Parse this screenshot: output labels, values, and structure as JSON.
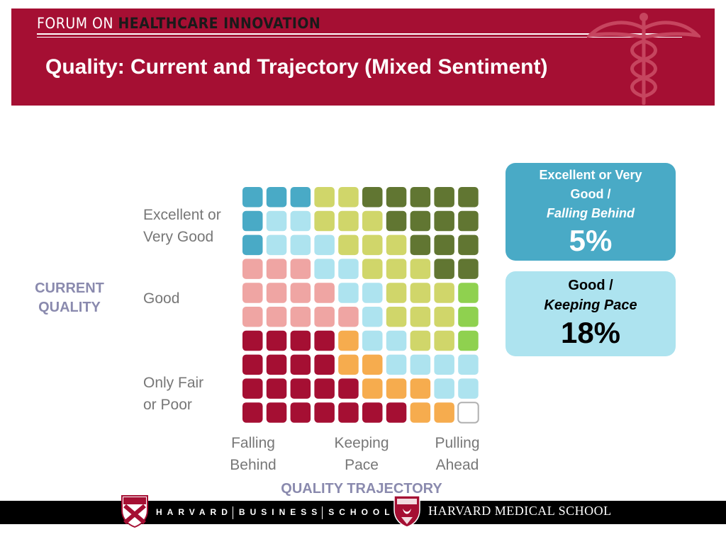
{
  "header": {
    "forum_prefix": "FORUM ON",
    "forum_name": "HEALTHCARE INNOVATION",
    "title": "Quality: Current and Trajectory (Mixed Sentiment)"
  },
  "colors": {
    "brand_red": "#a50f33",
    "teal_dark": "#49aac6",
    "teal_light": "#ade3ef",
    "olive": "#d0d66a",
    "dark_green": "#617632",
    "green": "#8fd14f",
    "pink": "#efa5a3",
    "maroon": "#a50f33",
    "orange": "#f6ac4e",
    "empty": "#ffffff"
  },
  "chart_data": {
    "type": "waffle",
    "x_axis_title": "QUALITY TRAJECTORY",
    "y_axis_title": "CURRENT QUALITY",
    "x_categories": [
      "Falling Behind",
      "Keeping Pace",
      "Pulling Ahead"
    ],
    "y_categories": [
      "Excellent or Very Good",
      "Good",
      "Only Fair or Poor"
    ],
    "grid_rows": 10,
    "grid_cols": 10,
    "cells": [
      [
        "T",
        "T",
        "T",
        "O",
        "O",
        "D",
        "D",
        "D",
        "D",
        "D"
      ],
      [
        "T",
        "L",
        "L",
        "O",
        "O",
        "O",
        "D",
        "D",
        "D",
        "D"
      ],
      [
        "T",
        "L",
        "L",
        "L",
        "O",
        "O",
        "O",
        "D",
        "D",
        "D"
      ],
      [
        "P",
        "P",
        "P",
        "L",
        "L",
        "O",
        "O",
        "O",
        "D",
        "D"
      ],
      [
        "P",
        "P",
        "P",
        "P",
        "L",
        "L",
        "O",
        "O",
        "O",
        "G"
      ],
      [
        "P",
        "P",
        "P",
        "P",
        "P",
        "L",
        "O",
        "O",
        "O",
        "G"
      ],
      [
        "M",
        "M",
        "M",
        "M",
        "A",
        "L",
        "L",
        "O",
        "O",
        "G"
      ],
      [
        "M",
        "M",
        "M",
        "M",
        "A",
        "A",
        "L",
        "L",
        "L",
        "L"
      ],
      [
        "M",
        "M",
        "M",
        "M",
        "M",
        "A",
        "A",
        "A",
        "L",
        "L"
      ],
      [
        "M",
        "M",
        "M",
        "M",
        "M",
        "M",
        "M",
        "A",
        "A",
        "E"
      ]
    ],
    "legend_key": {
      "T": "teal_dark",
      "L": "teal_light",
      "O": "olive",
      "D": "dark_green",
      "G": "green",
      "P": "pink",
      "M": "maroon",
      "A": "orange",
      "E": "empty"
    },
    "callouts": [
      {
        "line1": "Excellent or Very",
        "line2": "Good /",
        "line3": "Falling Behind",
        "value": "5%"
      },
      {
        "line1": "Good /",
        "line2": "Keeping Pace",
        "value": "18%"
      }
    ]
  },
  "y_labels": {
    "excellent": [
      "Excellent or",
      "Very Good"
    ],
    "good": [
      "Good"
    ],
    "fair": [
      "Only Fair",
      "or Poor"
    ]
  },
  "x_labels": {
    "falling": [
      "Falling",
      "Behind"
    ],
    "keeping": [
      "Keeping",
      "Pace"
    ],
    "pulling": [
      "Pulling",
      "Ahead"
    ]
  },
  "footer": {
    "hbs_1": "HARVARD",
    "hbs_2": "BUSINESS",
    "hbs_3": "SCHOOL",
    "hms": "HARVARD MEDICAL SCHOOL"
  }
}
